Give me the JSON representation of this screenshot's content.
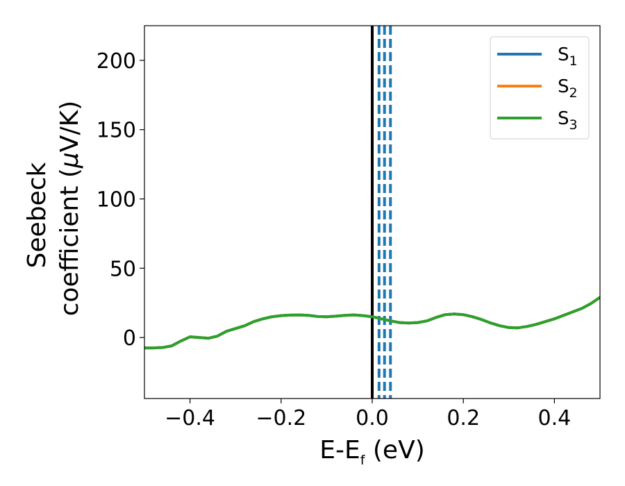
{
  "chart_data": {
    "type": "line",
    "xlabel_main": "E-E",
    "xlabel_sub": "f",
    "xlabel_unit": " (eV)",
    "ylabel_line1": "Seebeck",
    "ylabel_line2_prefix": "coefficient  (",
    "ylabel_mu": "μ",
    "ylabel_line2_suffix": "V/K)",
    "xlim": [
      -0.5,
      0.5
    ],
    "ylim": [
      -44,
      225
    ],
    "xticks": [
      -0.4,
      -0.2,
      0.0,
      0.2,
      0.4
    ],
    "xtick_labels": [
      "−0.4",
      "−0.2",
      "0.0",
      "0.2",
      "0.4"
    ],
    "yticks": [
      0,
      50,
      100,
      150,
      200
    ],
    "ytick_labels": [
      "0",
      "50",
      "100",
      "150",
      "200"
    ],
    "grid": false,
    "legend_position": "top-right",
    "fermi_line_x": 0.0,
    "dashed_lines_x": [
      0.015,
      0.027,
      0.04
    ],
    "x": [
      -0.5,
      -0.48,
      -0.46,
      -0.44,
      -0.42,
      -0.4,
      -0.38,
      -0.36,
      -0.34,
      -0.32,
      -0.3,
      -0.28,
      -0.26,
      -0.24,
      -0.22,
      -0.2,
      -0.18,
      -0.16,
      -0.14,
      -0.12,
      -0.1,
      -0.08,
      -0.06,
      -0.04,
      -0.02,
      0.0,
      0.02,
      0.04,
      0.06,
      0.08,
      0.1,
      0.12,
      0.14,
      0.16,
      0.18,
      0.2,
      0.22,
      0.24,
      0.26,
      0.28,
      0.3,
      0.32,
      0.34,
      0.36,
      0.38,
      0.4,
      0.42,
      0.44,
      0.46,
      0.48,
      0.5
    ],
    "series": [
      {
        "name": "S",
        "sub": "1",
        "color": "#1f77b4",
        "values": [
          -7.5,
          -7.5,
          -7.2,
          -6,
          -2.5,
          0.5,
          0,
          -0.5,
          1,
          4.5,
          6.5,
          8.5,
          11.5,
          13.5,
          15,
          15.8,
          16.2,
          16.3,
          16,
          15.2,
          15,
          15.4,
          16,
          16.3,
          15.8,
          15,
          13.5,
          12,
          10.8,
          10.5,
          10.8,
          12,
          14.5,
          16.5,
          17,
          16.5,
          15,
          13,
          10.5,
          8.5,
          7.2,
          7,
          8,
          9.5,
          11.5,
          13.5,
          16,
          18.5,
          21,
          24.5,
          29
        ]
      },
      {
        "name": "S",
        "sub": "2",
        "color": "#ff7f0e",
        "values": [
          -7.5,
          -7.5,
          -7.2,
          -6,
          -2.5,
          0.5,
          0,
          -0.5,
          1,
          4.5,
          6.5,
          8.5,
          11.5,
          13.5,
          15,
          15.8,
          16.2,
          16.3,
          16,
          15.2,
          15,
          15.4,
          16,
          16.3,
          15.8,
          15,
          13.5,
          12,
          10.8,
          10.5,
          10.8,
          12,
          14.5,
          16.5,
          17,
          16.5,
          15,
          13,
          10.5,
          8.5,
          7.2,
          7,
          8,
          9.5,
          11.5,
          13.5,
          16,
          18.5,
          21,
          24.5,
          29
        ]
      },
      {
        "name": "S",
        "sub": "3",
        "color": "#2ca02c",
        "values": [
          -7.5,
          -7.5,
          -7.2,
          -6,
          -2.5,
          0.5,
          0,
          -0.5,
          1,
          4.5,
          6.5,
          8.5,
          11.5,
          13.5,
          15,
          15.8,
          16.2,
          16.3,
          16,
          15.2,
          15,
          15.4,
          16,
          16.3,
          15.8,
          15,
          13.5,
          12,
          10.8,
          10.5,
          10.8,
          12,
          14.5,
          16.5,
          17,
          16.5,
          15,
          13,
          10.5,
          8.5,
          7.2,
          7,
          8,
          9.5,
          11.5,
          13.5,
          16,
          18.5,
          21,
          24.5,
          29
        ]
      }
    ]
  }
}
